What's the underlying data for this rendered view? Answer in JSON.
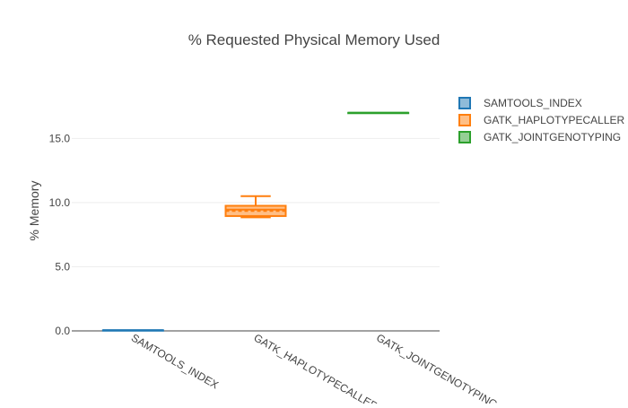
{
  "chart_data": {
    "type": "box",
    "title": "% Requested Physical Memory Used",
    "xlabel": "",
    "ylabel": "% Memory",
    "ylim": [
      0,
      18.8
    ],
    "yticks": [
      {
        "value": 0,
        "label": "0.0"
      },
      {
        "value": 5,
        "label": "5.0"
      },
      {
        "value": 10,
        "label": "10.0"
      },
      {
        "value": 15,
        "label": "15.0"
      }
    ],
    "grid": true,
    "legend_position": "top-right",
    "categories": [
      "SAMTOOLS_INDEX",
      "GATK_HAPLOTYPECALLER",
      "GATK_JOINTGENOTYPING"
    ],
    "series": [
      {
        "name": "SAMTOOLS_INDEX",
        "color": "#1f77b4",
        "fill": "rgba(31,119,180,0.5)",
        "min": 0.05,
        "q1": 0.05,
        "median": 0.05,
        "q3": 0.05,
        "max": 0.05,
        "mean": 0.05
      },
      {
        "name": "GATK_HAPLOTYPECALLER",
        "color": "#ff7f0e",
        "fill": "rgba(255,127,14,0.5)",
        "min": 8.85,
        "q1": 8.95,
        "median": 9.45,
        "q3": 9.75,
        "max": 10.5,
        "mean": 9.35
      },
      {
        "name": "GATK_JOINTGENOTYPING",
        "color": "#2ca02c",
        "fill": "rgba(44,160,44,0.5)",
        "min": 17.0,
        "q1": 17.0,
        "median": 17.0,
        "q3": 17.0,
        "max": 17.0,
        "mean": 17.0
      }
    ]
  }
}
